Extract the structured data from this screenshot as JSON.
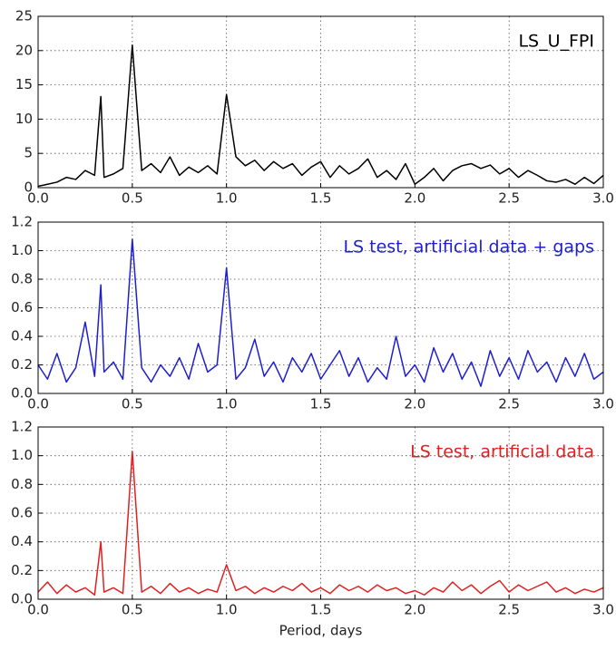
{
  "chart_data": [
    {
      "type": "line",
      "annotation": "LS_U_FPI",
      "color": "#000000",
      "grid": true,
      "xlim": [
        0,
        3
      ],
      "ylim": [
        0,
        25
      ],
      "xticks": [
        {
          "value": 0,
          "label": "0.0"
        },
        {
          "value": 0.5,
          "label": "0.5"
        },
        {
          "value": 1,
          "label": "1.0"
        },
        {
          "value": 1.5,
          "label": "1.5"
        },
        {
          "value": 2,
          "label": "2.0"
        },
        {
          "value": 2.5,
          "label": "2.5"
        },
        {
          "value": 3,
          "label": "3.0"
        }
      ],
      "yticks": [
        0,
        5,
        10,
        15,
        20,
        25
      ],
      "x": [
        0,
        0.05,
        0.1,
        0.15,
        0.2,
        0.25,
        0.3,
        0.333,
        0.35,
        0.4,
        0.45,
        0.5,
        0.55,
        0.6,
        0.65,
        0.7,
        0.75,
        0.8,
        0.85,
        0.9,
        0.95,
        1.0,
        1.05,
        1.1,
        1.15,
        1.2,
        1.25,
        1.3,
        1.35,
        1.4,
        1.45,
        1.5,
        1.55,
        1.6,
        1.65,
        1.7,
        1.75,
        1.8,
        1.85,
        1.9,
        1.95,
        2.0,
        2.05,
        2.1,
        2.15,
        2.2,
        2.25,
        2.3,
        2.35,
        2.4,
        2.45,
        2.5,
        2.55,
        2.6,
        2.65,
        2.7,
        2.75,
        2.8,
        2.85,
        2.9,
        2.95,
        3.0
      ],
      "values": [
        0.2,
        0.5,
        0.8,
        1.5,
        1.2,
        2.5,
        1.8,
        13.3,
        1.5,
        2.0,
        2.8,
        20.8,
        2.5,
        3.5,
        2.2,
        4.5,
        1.8,
        3.0,
        2.2,
        3.2,
        2.0,
        13.6,
        4.5,
        3.2,
        4.0,
        2.5,
        3.8,
        2.8,
        3.5,
        1.8,
        3.0,
        3.8,
        1.5,
        3.2,
        2.0,
        2.8,
        4.2,
        1.5,
        2.5,
        1.2,
        3.5,
        0.5,
        1.5,
        2.8,
        1.0,
        2.5,
        3.2,
        3.5,
        2.8,
        3.3,
        2.0,
        2.8,
        1.5,
        2.5,
        1.8,
        1.0,
        0.8,
        1.2,
        0.5,
        1.5,
        0.6,
        1.8
      ]
    },
    {
      "type": "line",
      "annotation": "LS test, artificial data + gaps",
      "color": "#1f1fd0",
      "grid": true,
      "xlim": [
        0,
        3
      ],
      "ylim": [
        0,
        1.2
      ],
      "xticks": [
        {
          "value": 0,
          "label": "0.0"
        },
        {
          "value": 0.5,
          "label": "0.5"
        },
        {
          "value": 1,
          "label": "1.0"
        },
        {
          "value": 1.5,
          "label": "1.5"
        },
        {
          "value": 2,
          "label": "2.0"
        },
        {
          "value": 2.5,
          "label": "2.5"
        },
        {
          "value": 3,
          "label": "3.0"
        }
      ],
      "yticks": [
        {
          "value": 0,
          "label": "0.0"
        },
        0.2,
        0.4,
        0.6,
        0.8,
        {
          "value": 1,
          "label": "1.0"
        },
        1.2
      ],
      "x": [
        0,
        0.05,
        0.1,
        0.15,
        0.2,
        0.25,
        0.3,
        0.333,
        0.35,
        0.4,
        0.45,
        0.5,
        0.55,
        0.6,
        0.65,
        0.7,
        0.75,
        0.8,
        0.85,
        0.9,
        0.95,
        1.0,
        1.05,
        1.1,
        1.15,
        1.2,
        1.25,
        1.3,
        1.35,
        1.4,
        1.45,
        1.5,
        1.55,
        1.6,
        1.65,
        1.7,
        1.75,
        1.8,
        1.85,
        1.9,
        1.95,
        2.0,
        2.05,
        2.1,
        2.15,
        2.2,
        2.25,
        2.3,
        2.35,
        2.4,
        2.45,
        2.5,
        2.55,
        2.6,
        2.65,
        2.7,
        2.75,
        2.8,
        2.85,
        2.9,
        2.95,
        3.0
      ],
      "values": [
        0.2,
        0.1,
        0.28,
        0.08,
        0.18,
        0.5,
        0.12,
        0.76,
        0.15,
        0.22,
        0.1,
        1.08,
        0.18,
        0.08,
        0.2,
        0.12,
        0.25,
        0.1,
        0.35,
        0.15,
        0.2,
        0.88,
        0.1,
        0.18,
        0.38,
        0.12,
        0.22,
        0.08,
        0.25,
        0.15,
        0.28,
        0.1,
        0.2,
        0.3,
        0.12,
        0.25,
        0.08,
        0.18,
        0.1,
        0.4,
        0.12,
        0.2,
        0.08,
        0.32,
        0.15,
        0.28,
        0.1,
        0.22,
        0.05,
        0.3,
        0.12,
        0.25,
        0.1,
        0.3,
        0.15,
        0.22,
        0.08,
        0.25,
        0.12,
        0.28,
        0.1,
        0.15
      ]
    },
    {
      "type": "line",
      "annotation": "LS test, artificial data",
      "color": "#e02020",
      "grid": true,
      "xlabel": "Period, days",
      "xlim": [
        0,
        3
      ],
      "ylim": [
        0,
        1.2
      ],
      "xticks": [
        {
          "value": 0,
          "label": "0.0"
        },
        {
          "value": 0.5,
          "label": "0.5"
        },
        {
          "value": 1,
          "label": "1.0"
        },
        {
          "value": 1.5,
          "label": "1.5"
        },
        {
          "value": 2,
          "label": "2.0"
        },
        {
          "value": 2.5,
          "label": "2.5"
        },
        {
          "value": 3,
          "label": "3.0"
        }
      ],
      "yticks": [
        {
          "value": 0,
          "label": "0.0"
        },
        0.2,
        0.4,
        0.6,
        0.8,
        {
          "value": 1,
          "label": "1.0"
        },
        1.2
      ],
      "x": [
        0,
        0.05,
        0.1,
        0.15,
        0.2,
        0.25,
        0.3,
        0.333,
        0.35,
        0.4,
        0.45,
        0.5,
        0.55,
        0.6,
        0.65,
        0.7,
        0.75,
        0.8,
        0.85,
        0.9,
        0.95,
        1.0,
        1.05,
        1.1,
        1.15,
        1.2,
        1.25,
        1.3,
        1.35,
        1.4,
        1.45,
        1.5,
        1.55,
        1.6,
        1.65,
        1.7,
        1.75,
        1.8,
        1.85,
        1.9,
        1.95,
        2.0,
        2.05,
        2.1,
        2.15,
        2.2,
        2.25,
        2.3,
        2.35,
        2.4,
        2.45,
        2.5,
        2.55,
        2.6,
        2.65,
        2.7,
        2.75,
        2.8,
        2.85,
        2.9,
        2.95,
        3.0
      ],
      "values": [
        0.05,
        0.12,
        0.04,
        0.1,
        0.05,
        0.08,
        0.03,
        0.4,
        0.05,
        0.08,
        0.04,
        1.03,
        0.05,
        0.09,
        0.04,
        0.11,
        0.05,
        0.08,
        0.04,
        0.07,
        0.05,
        0.24,
        0.06,
        0.09,
        0.04,
        0.08,
        0.05,
        0.09,
        0.06,
        0.11,
        0.05,
        0.08,
        0.04,
        0.1,
        0.06,
        0.09,
        0.05,
        0.1,
        0.06,
        0.08,
        0.04,
        0.06,
        0.03,
        0.08,
        0.05,
        0.12,
        0.06,
        0.1,
        0.04,
        0.09,
        0.13,
        0.05,
        0.1,
        0.06,
        0.09,
        0.12,
        0.05,
        0.08,
        0.04,
        0.07,
        0.05,
        0.08
      ]
    }
  ]
}
